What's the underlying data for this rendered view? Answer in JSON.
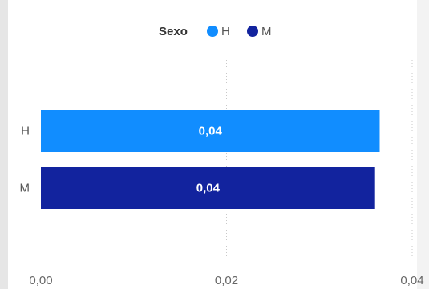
{
  "chart_data": {
    "type": "bar",
    "orientation": "horizontal",
    "categories": [
      "H",
      "M"
    ],
    "values": [
      0.0365,
      0.036
    ],
    "data_labels": [
      "0,04",
      "0,04"
    ],
    "colors": [
      "#118DFF",
      "#12239E"
    ],
    "xlim": [
      0,
      0.04
    ],
    "xticks": [
      {
        "value": 0,
        "label": "0,00"
      },
      {
        "value": 0.02,
        "label": "0,02"
      },
      {
        "value": 0.04,
        "label": "0,04"
      }
    ],
    "grid": "vertical-dotted",
    "legend": {
      "title": "Sexo",
      "placement": "top-center",
      "items": [
        {
          "label": "H",
          "color": "#118DFF"
        },
        {
          "label": "M",
          "color": "#12239E"
        }
      ]
    }
  }
}
